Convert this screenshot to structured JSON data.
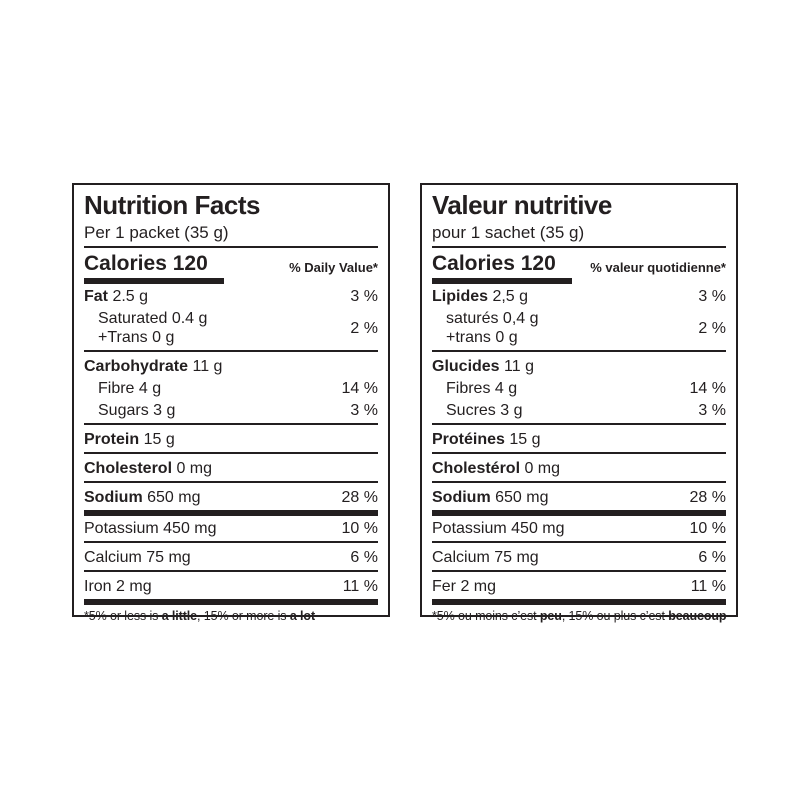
{
  "colors": {
    "ink": "#231f20",
    "background": "#ffffff"
  },
  "en": {
    "title": "Nutrition Facts",
    "serving": "Per 1 packet (35 g)",
    "calories": "Calories 120",
    "daily_value_header": "% Daily Value*",
    "fat": {
      "name": "Fat",
      "amount": " 2.5 g",
      "dv": "3 %"
    },
    "saturated_trans": {
      "line1": "Saturated 0.4 g",
      "line2": "+Trans 0 g",
      "dv": "2 %"
    },
    "carbohydrate": {
      "name": "Carbohydrate",
      "amount": " 11 g"
    },
    "fibre": {
      "text": "Fibre 4 g",
      "dv": "14 %"
    },
    "sugars": {
      "text": "Sugars 3 g",
      "dv": "3 %"
    },
    "protein": {
      "name": "Protein",
      "amount": " 15 g"
    },
    "cholesterol": {
      "name": "Cholesterol",
      "amount": " 0 mg"
    },
    "sodium": {
      "name": "Sodium",
      "amount": " 650 mg",
      "dv": "28 %"
    },
    "potassium": {
      "text": "Potassium 450 mg",
      "dv": "10 %"
    },
    "calcium": {
      "text": "Calcium 75 mg",
      "dv": "6 %"
    },
    "iron": {
      "text": "Iron 2 mg",
      "dv": "11 %"
    },
    "footnote": {
      "part1": "*5% or less is ",
      "bold1": "a little",
      "part2": ", 15% or more is ",
      "bold2": "a lot"
    }
  },
  "fr": {
    "title": "Valeur nutritive",
    "serving": "pour 1 sachet (35 g)",
    "calories": "Calories 120",
    "daily_value_header": "% valeur quotidienne*",
    "fat": {
      "name": "Lipides",
      "amount": " 2,5 g",
      "dv": "3 %"
    },
    "saturated_trans": {
      "line1": "saturés 0,4 g",
      "line2": "+trans 0 g",
      "dv": "2 %"
    },
    "carbohydrate": {
      "name": "Glucides",
      "amount": " 11 g"
    },
    "fibre": {
      "text": "Fibres 4 g",
      "dv": "14 %"
    },
    "sugars": {
      "text": "Sucres 3 g",
      "dv": "3 %"
    },
    "protein": {
      "name": "Protéines",
      "amount": " 15 g"
    },
    "cholesterol": {
      "name": "Cholestérol",
      "amount": " 0 mg"
    },
    "sodium": {
      "name": "Sodium",
      "amount": " 650 mg",
      "dv": "28 %"
    },
    "potassium": {
      "text": "Potassium 450 mg",
      "dv": "10 %"
    },
    "calcium": {
      "text": "Calcium 75 mg",
      "dv": "6 %"
    },
    "iron": {
      "text": "Fer 2 mg",
      "dv": "11 %"
    },
    "footnote": {
      "part1": "*5% ou moins c’est ",
      "bold1": "peu",
      "part2": ", 15% ou plus c’est ",
      "bold2": "beaucoup"
    }
  }
}
